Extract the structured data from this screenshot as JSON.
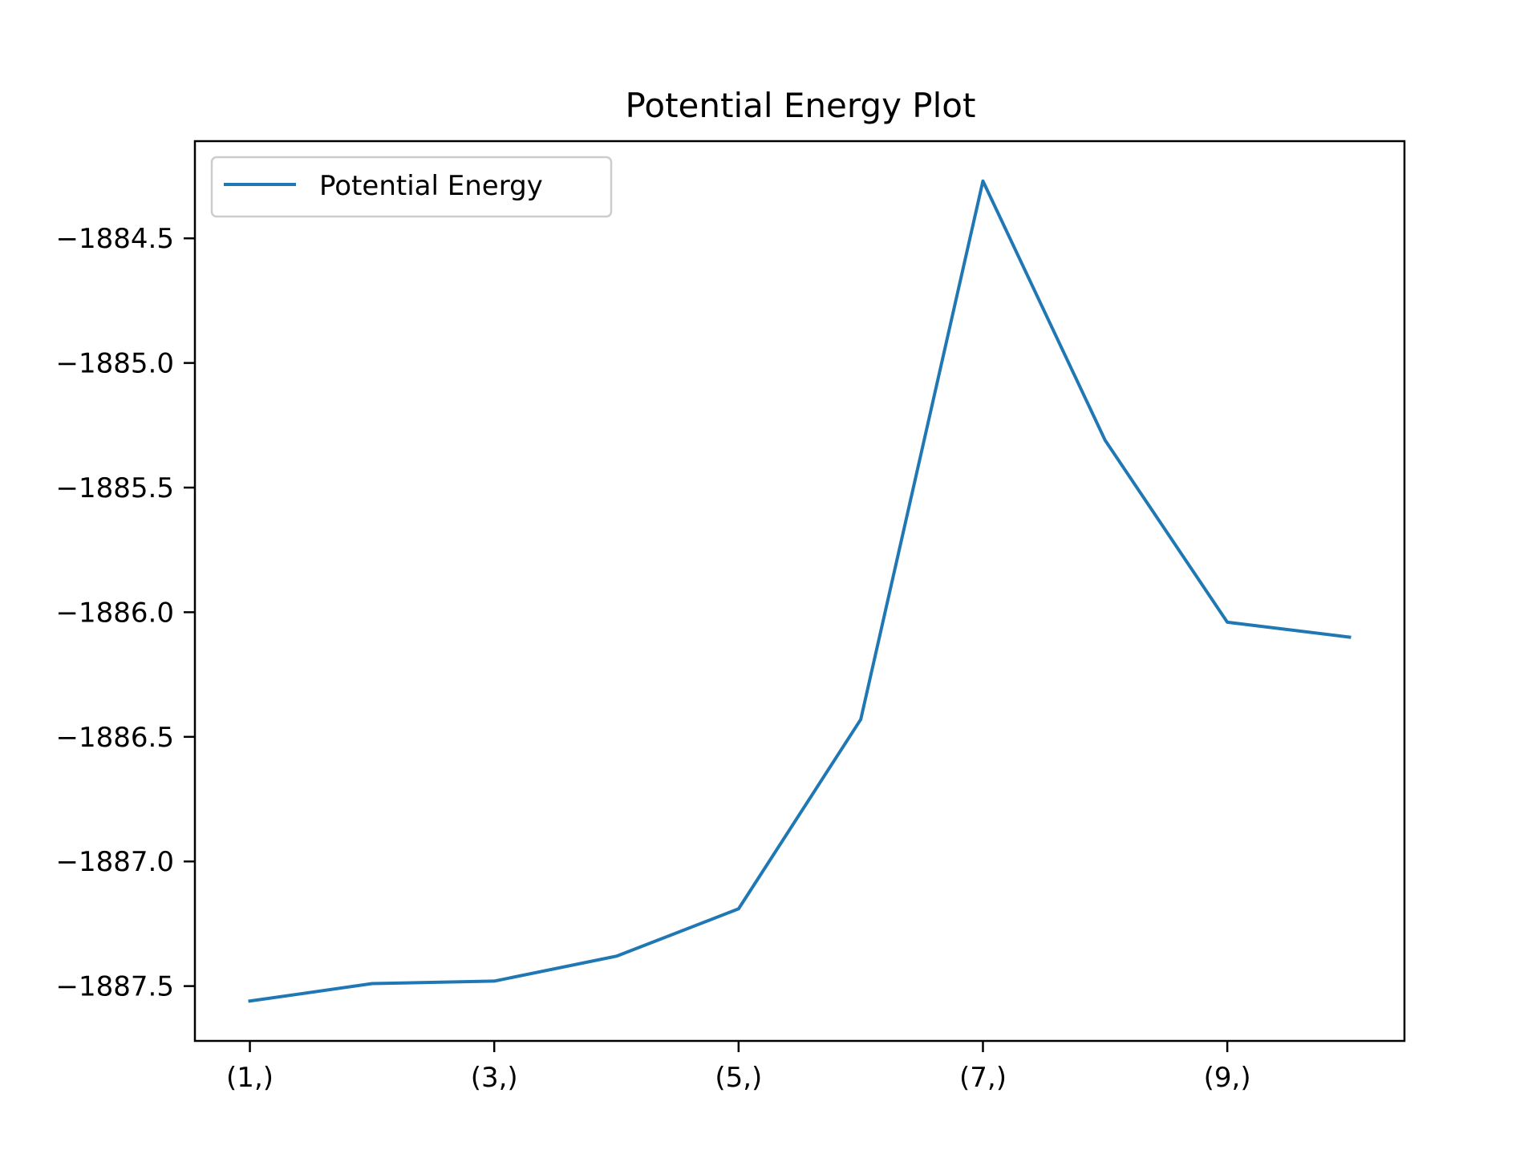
{
  "chart_data": {
    "type": "line",
    "title": "Potential Energy Plot",
    "xlabel": "",
    "ylabel": "",
    "x": [
      1,
      2,
      3,
      4,
      5,
      6,
      7,
      8,
      9,
      10
    ],
    "x_tick_labels": [
      "(1,)",
      "(3,)",
      "(5,)",
      "(7,)",
      "(9,)"
    ],
    "x_tick_values": [
      1,
      3,
      5,
      7,
      9
    ],
    "y_tick_labels": [
      "−1884.5",
      "−1885.0",
      "−1885.5",
      "−1886.0",
      "−1886.5",
      "−1887.0",
      "−1887.5"
    ],
    "y_tick_values": [
      -1884.5,
      -1885.0,
      -1885.5,
      -1886.0,
      -1886.5,
      -1887.0,
      -1887.5
    ],
    "xlim": [
      0.55,
      10.45
    ],
    "ylim": [
      -1887.72,
      -1884.11
    ],
    "grid": false,
    "legend_position": "upper-left",
    "series": [
      {
        "name": "Potential Energy",
        "color": "#1f77b4",
        "values": [
          -1887.56,
          -1887.49,
          -1887.48,
          -1887.38,
          -1887.19,
          -1886.43,
          -1884.27,
          -1885.31,
          -1886.04,
          -1886.1
        ]
      }
    ]
  }
}
